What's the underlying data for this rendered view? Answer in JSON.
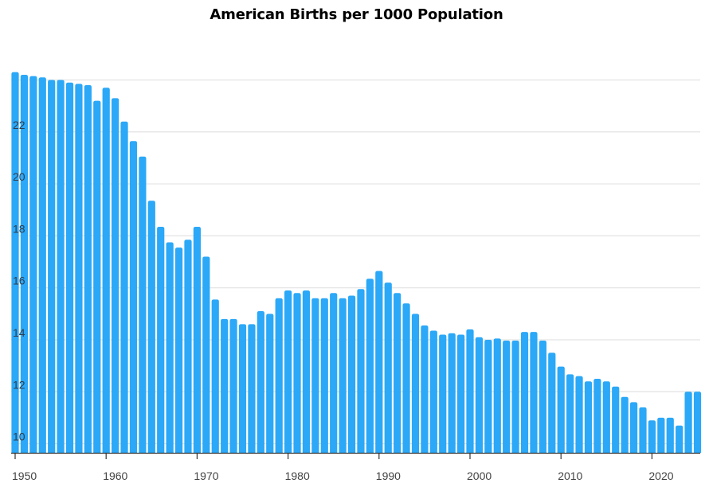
{
  "chart_data": {
    "type": "bar",
    "title": "American Births per 1000 Population",
    "xlabel": "",
    "ylabel": "",
    "ylim": [
      9.65,
      24.5
    ],
    "grid": true,
    "y_ticks": [
      10,
      12,
      14,
      16,
      18,
      20,
      22,
      24
    ],
    "y_tick_labels": [
      "10",
      "12",
      "14",
      "16",
      "18",
      "20",
      "22",
      ""
    ],
    "x_ticks": [
      1950,
      1960,
      1970,
      1980,
      1990,
      2000,
      2010,
      2020
    ],
    "x_tick_labels": [
      "1950",
      "1960",
      "1970",
      "1980",
      "1990",
      "2000",
      "2010",
      "2020"
    ],
    "bar_color": "#2ba8f7",
    "categories": [
      1950,
      1951,
      1952,
      1953,
      1954,
      1955,
      1956,
      1957,
      1958,
      1959,
      1960,
      1961,
      1962,
      1963,
      1964,
      1965,
      1966,
      1967,
      1968,
      1969,
      1970,
      1971,
      1972,
      1973,
      1974,
      1975,
      1976,
      1977,
      1978,
      1979,
      1980,
      1981,
      1982,
      1983,
      1984,
      1985,
      1986,
      1987,
      1988,
      1989,
      1990,
      1991,
      1992,
      1993,
      1994,
      1995,
      1996,
      1997,
      1998,
      1999,
      2000,
      2001,
      2002,
      2003,
      2004,
      2005,
      2006,
      2007,
      2008,
      2009,
      2010,
      2011,
      2012,
      2013,
      2014,
      2015,
      2016,
      2017,
      2018,
      2019,
      2020,
      2021,
      2022,
      2023,
      2024,
      2025
    ],
    "values": [
      24.3,
      24.2,
      24.15,
      24.1,
      24.0,
      24.0,
      23.9,
      23.85,
      23.8,
      23.2,
      23.7,
      23.3,
      22.4,
      21.65,
      21.05,
      19.35,
      18.35,
      17.75,
      17.55,
      17.85,
      18.35,
      17.2,
      15.55,
      14.8,
      14.8,
      14.6,
      14.6,
      15.1,
      15.0,
      15.6,
      15.9,
      15.8,
      15.9,
      15.6,
      15.6,
      15.8,
      15.6,
      15.7,
      15.95,
      16.35,
      16.65,
      16.2,
      15.8,
      15.4,
      15.0,
      14.55,
      14.35,
      14.2,
      14.25,
      14.2,
      14.4,
      14.1,
      14.0,
      14.05,
      13.97,
      13.97,
      14.3,
      14.3,
      13.97,
      13.5,
      12.97,
      12.67,
      12.6,
      12.4,
      12.5,
      12.4,
      12.2,
      11.8,
      11.6,
      11.4,
      10.9,
      11.0,
      11.0,
      10.7,
      12.0,
      12.0
    ]
  }
}
